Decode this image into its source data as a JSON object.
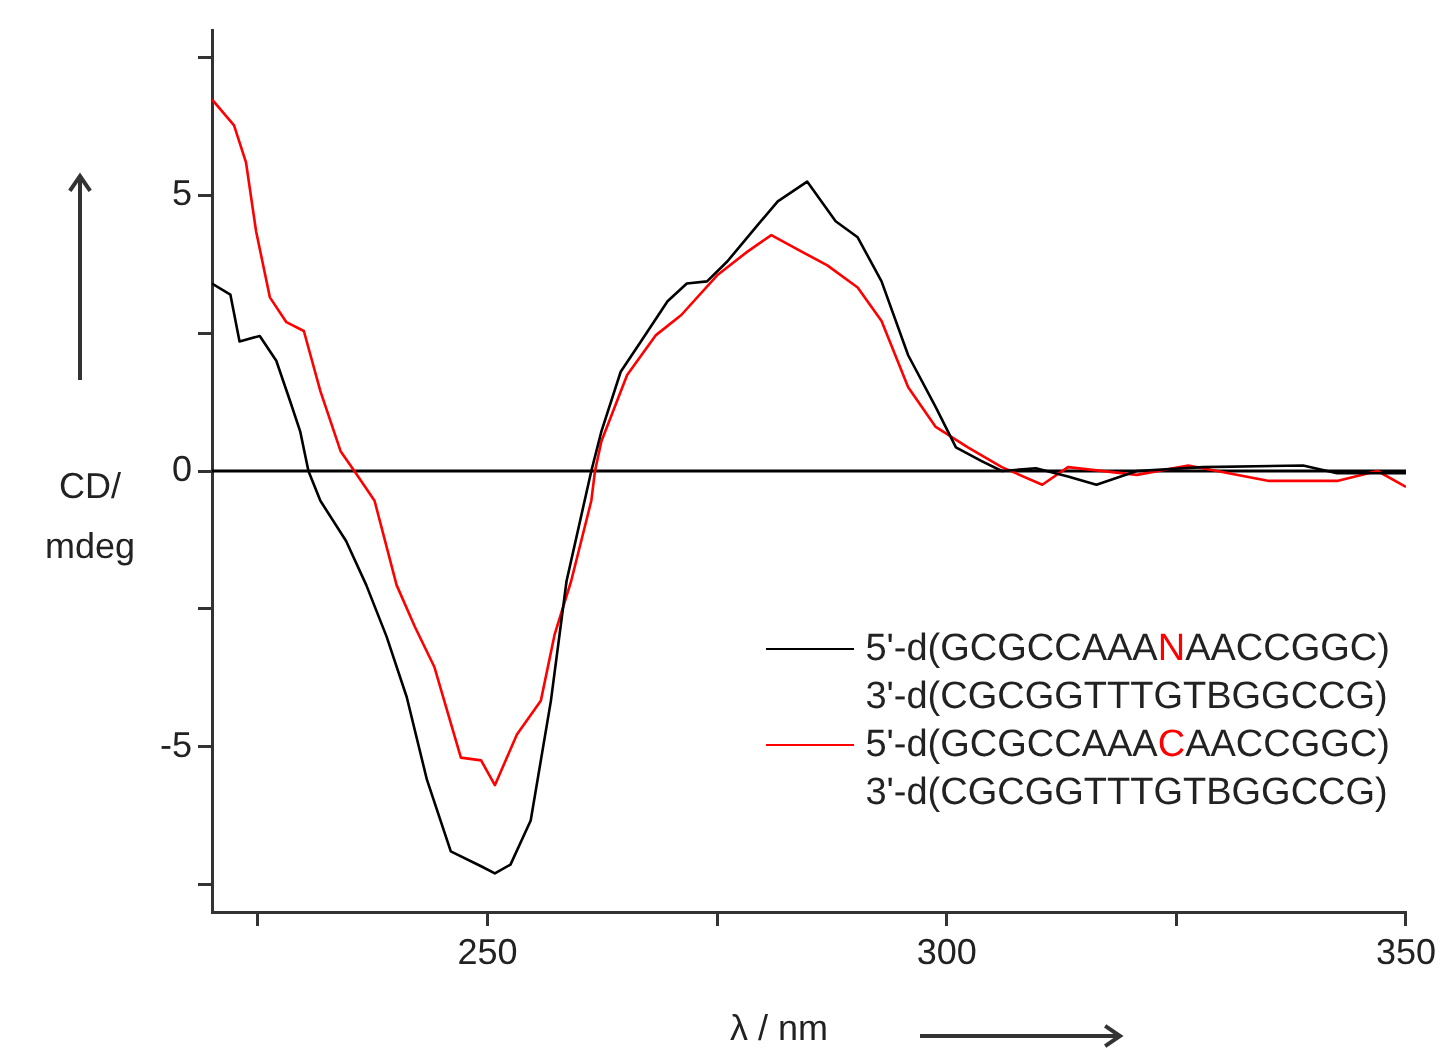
{
  "chart_data": {
    "type": "line",
    "xlabel": "λ / nm",
    "ylabel": "CD/ mdeg",
    "xlim": [
      220,
      350
    ],
    "xticks": [
      {
        "value": 225,
        "label": null
      },
      250,
      {
        "value": 275,
        "label": null
      },
      300,
      {
        "value": 325,
        "label": null
      },
      350
    ],
    "ylim": [
      -8,
      8
    ],
    "yticks": [
      {
        "value": -7.5,
        "label": null
      },
      -5,
      {
        "value": -2.5,
        "label": null
      },
      0,
      {
        "value": 2.5,
        "label": null
      },
      5,
      {
        "value": 7.5,
        "label": null
      }
    ],
    "grid": false,
    "legend": "bottom right",
    "marker": "none",
    "line_style": "solid",
    "ref_lines": [
      {
        "axis": "y",
        "value": 0,
        "color": "#000000"
      }
    ],
    "series": [
      {
        "name": "5'-d(GCGCCAAANAACCGGC)\n3'-d(CGCGGTTTGTBGGCCG)",
        "color": "#000000",
        "x": [
          220,
          222,
          223,
          225.2,
          227,
          228.5,
          229.6,
          230.5,
          231.8,
          234.6,
          236.8,
          239,
          241.2,
          243.4,
          246,
          249.3,
          250.8,
          252.5,
          254.7,
          256.9,
          258.6,
          261.3,
          262.4,
          264.5,
          266.7,
          269.6,
          271.7,
          273.9,
          276.1,
          279.2,
          281.6,
          284.8,
          287.9,
          290.3,
          292.9,
          295.8,
          298.8,
          301,
          303.8,
          306,
          309.7,
          313.2,
          316.3,
          320.7,
          327.9,
          338.8,
          342.5,
          350
        ],
        "values": [
          3.4,
          3.2,
          2.35,
          2.45,
          2.0,
          1.27,
          0.72,
          0,
          -0.54,
          -1.27,
          -2.07,
          -3.0,
          -4.1,
          -5.6,
          -6.9,
          -7.17,
          -7.3,
          -7.14,
          -6.34,
          -4.17,
          -2.0,
          0,
          0.72,
          1.8,
          2.35,
          3.08,
          3.4,
          3.44,
          3.8,
          4.42,
          4.89,
          5.25,
          4.53,
          4.24,
          3.44,
          2.1,
          1.16,
          0.43,
          0.18,
          0,
          0.05,
          -0.1,
          -0.25,
          0,
          0.07,
          0.1,
          -0.04,
          -0.04
        ]
      },
      {
        "name": "5'-d(GCGCCAAACAACCGGC)\n3'-d(CGCGGTTTGTBGGCCG)",
        "color": "#ff0000",
        "x": [
          220,
          222.4,
          223.7,
          224.8,
          226.3,
          228.1,
          230,
          231.8,
          234,
          235.5,
          237.7,
          240.1,
          242.1,
          244.2,
          247.1,
          249.3,
          250.8,
          253.2,
          255.8,
          257.3,
          259.1,
          261.3,
          261.7,
          262.4,
          265.2,
          268.3,
          271.1,
          275,
          278.3,
          280.9,
          284.2,
          287,
          290.3,
          292.9,
          295.8,
          298.8,
          302.3,
          306,
          310.4,
          313.2,
          320.7,
          326.3,
          335.1,
          342.5,
          346.9,
          350
        ],
        "values": [
          6.74,
          6.27,
          5.6,
          4.35,
          3.15,
          2.7,
          2.54,
          1.45,
          0.36,
          0,
          -0.54,
          -2.07,
          -2.83,
          -3.55,
          -5.2,
          -5.25,
          -5.7,
          -4.78,
          -4.17,
          -2.97,
          -2.0,
          -0.54,
          0,
          0.54,
          1.74,
          2.46,
          2.83,
          3.55,
          3.98,
          4.28,
          3.98,
          3.73,
          3.33,
          2.72,
          1.52,
          0.8,
          0.43,
          0.07,
          -0.25,
          0.07,
          -0.07,
          0.1,
          -0.18,
          -0.18,
          0,
          -0.29
        ]
      }
    ]
  }
}
